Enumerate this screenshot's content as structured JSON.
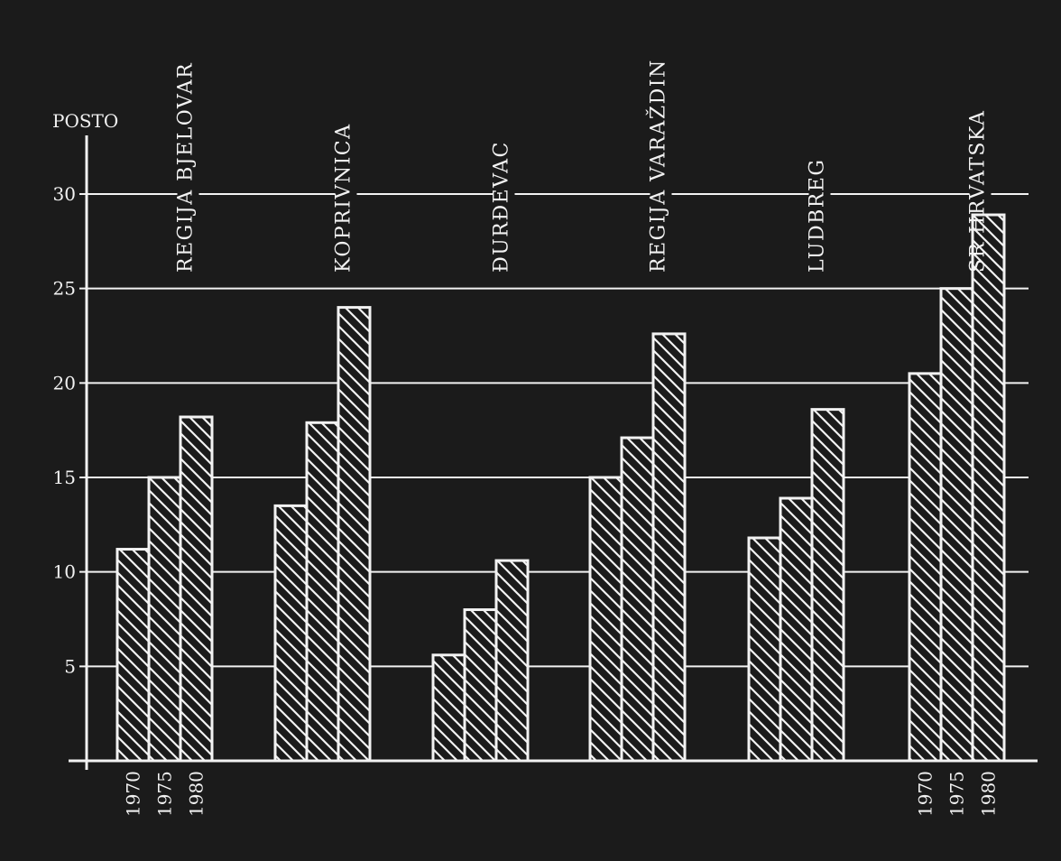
{
  "chart_data": {
    "type": "bar",
    "ylabel": "POSTO",
    "ylim": [
      0,
      30
    ],
    "yticks": [
      5,
      10,
      15,
      20,
      25,
      30
    ],
    "series_years": [
      "1970",
      "1975",
      "1980"
    ],
    "groups": [
      {
        "label": "REGIJA BJELOVAR",
        "values": [
          11.2,
          15.0,
          18.2
        ]
      },
      {
        "label": "KOPRIVNICA",
        "values": [
          13.5,
          17.9,
          24.0
        ]
      },
      {
        "label": "ĐURĐEVAC",
        "values": [
          5.6,
          8.0,
          10.6
        ]
      },
      {
        "label": "REGIJA VARAŽDIN",
        "values": [
          15.0,
          17.1,
          22.6
        ]
      },
      {
        "label": "LUDBREG",
        "values": [
          11.8,
          13.9,
          18.6
        ]
      },
      {
        "label": "SR HRVATSKA",
        "values": [
          20.5,
          25.0,
          28.9
        ]
      }
    ],
    "year_labels_shown_under": [
      "REGIJA BJELOVAR",
      "SR HRVATSKA"
    ],
    "grid": true,
    "colors": {
      "background": "#1b1b1b",
      "ink": "#f2f2f2"
    }
  }
}
